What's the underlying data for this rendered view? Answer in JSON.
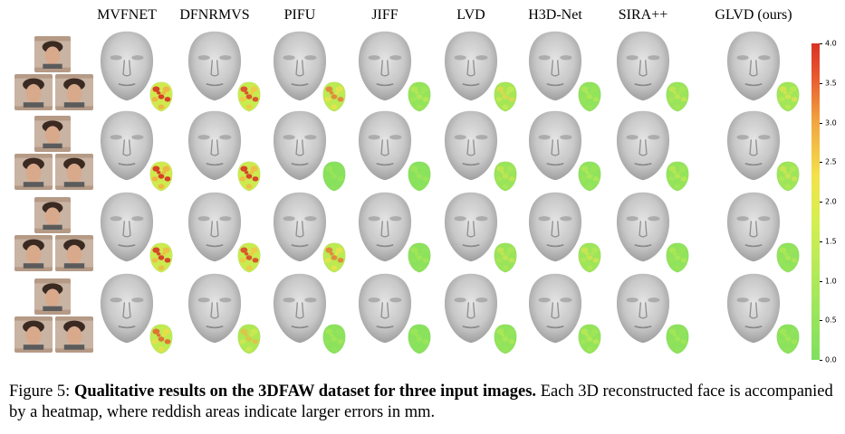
{
  "headers": [
    "MVFNET",
    "DFNRMVS",
    "PIFU",
    "JIFF",
    "LVD",
    "H3D-Net",
    "SIRA++",
    "GLVD (ours)"
  ],
  "colorbar_ticks": [
    "4.0",
    "3.5",
    "3.0",
    "2.5",
    "2.0",
    "1.5",
    "1.0",
    "0.5",
    "0.0"
  ],
  "caption": {
    "prefix": "Figure 5: ",
    "bold": "Qualitative results on the 3DFAW dataset for three input images.",
    "rest": " Each 3D reconstructed face is accompanied by a heatmap, where reddish areas indicate larger errors in mm."
  },
  "heat_levels": [
    [
      0.95,
      0.85,
      0.7,
      0.25,
      0.45,
      0.2,
      0.3,
      0.4
    ],
    [
      0.95,
      0.9,
      0.1,
      0.12,
      0.3,
      0.2,
      0.25,
      0.35
    ],
    [
      0.9,
      0.85,
      0.7,
      0.15,
      0.3,
      0.35,
      0.2,
      0.2
    ],
    [
      0.75,
      0.55,
      0.15,
      0.12,
      0.2,
      0.25,
      0.15,
      0.15
    ]
  ]
}
